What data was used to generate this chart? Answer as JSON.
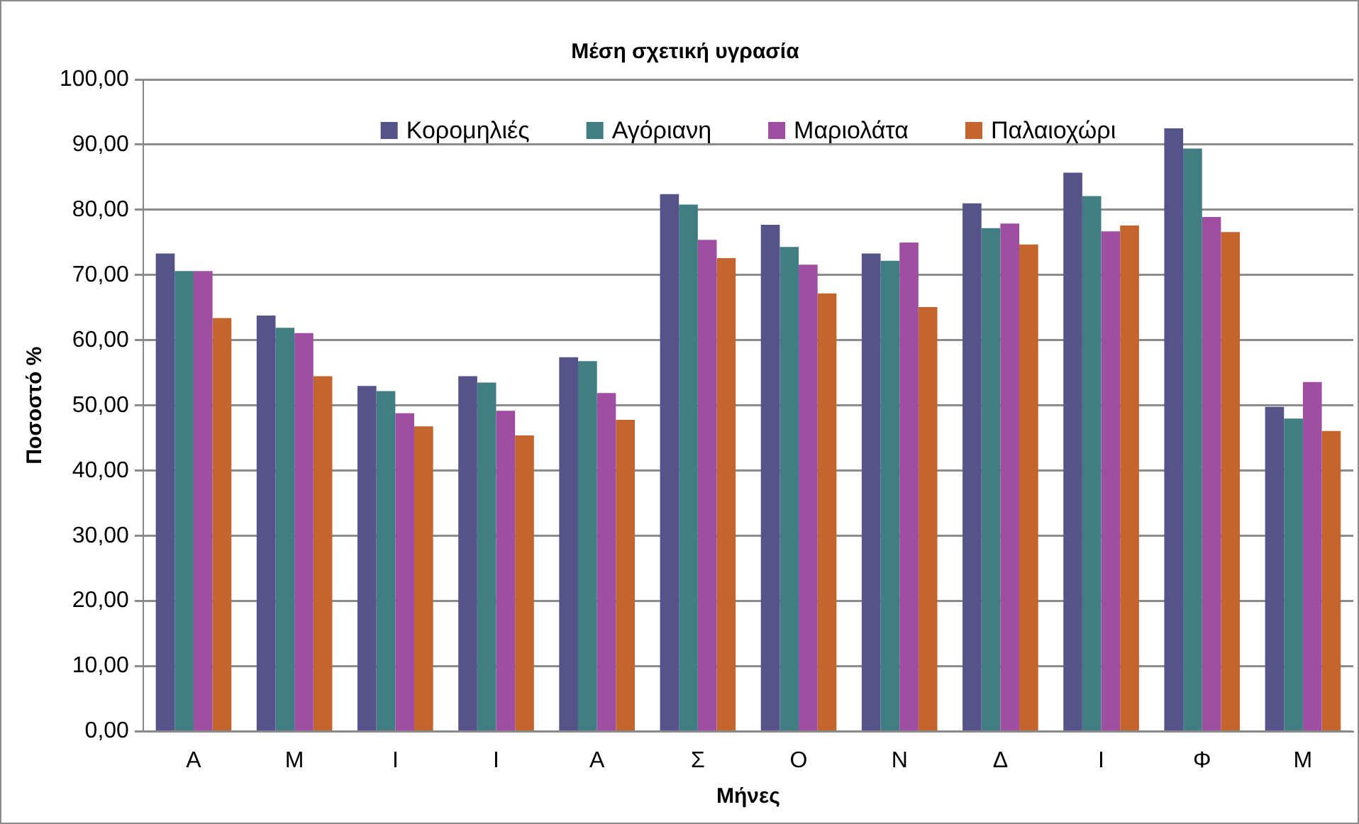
{
  "chart_data": {
    "type": "bar",
    "title": "Μέση σχετική υγρασία",
    "xlabel": "Μήνες",
    "ylabel": "Ποσοστό %",
    "categories": [
      "Α",
      "Μ",
      "Ι",
      "Ι",
      "Α",
      "Σ",
      "Ο",
      "Ν",
      "Δ",
      "Ι",
      "Φ",
      "Μ"
    ],
    "series": [
      {
        "name": "Κορομηλιές",
        "color": "#55538a",
        "values": [
          73.3,
          63.8,
          53.0,
          54.5,
          57.4,
          82.4,
          77.7,
          73.3,
          81.0,
          85.7,
          92.5,
          49.8
        ]
      },
      {
        "name": "Αγόριανη",
        "color": "#417e84",
        "values": [
          70.6,
          61.9,
          52.2,
          53.5,
          56.8,
          80.8,
          74.3,
          72.2,
          77.2,
          82.1,
          89.4,
          48.0
        ]
      },
      {
        "name": "Μαριολάτα",
        "color": "#a04ea2",
        "values": [
          70.6,
          61.1,
          48.8,
          49.2,
          51.9,
          75.4,
          71.6,
          75.0,
          77.9,
          76.7,
          78.9,
          53.6
        ]
      },
      {
        "name": "Παλαιοχώρι",
        "color": "#c3652d",
        "values": [
          63.4,
          54.5,
          46.8,
          45.4,
          47.8,
          72.6,
          67.2,
          65.1,
          74.7,
          77.6,
          76.6,
          46.1
        ]
      }
    ],
    "ylim": [
      0,
      100
    ],
    "yticks": [
      {
        "value": 0,
        "label": "0,00"
      },
      {
        "value": 10,
        "label": "10,00"
      },
      {
        "value": 20,
        "label": "20,00"
      },
      {
        "value": 30,
        "label": "30,00"
      },
      {
        "value": 40,
        "label": "40,00"
      },
      {
        "value": 50,
        "label": "50,00"
      },
      {
        "value": 60,
        "label": "60,00"
      },
      {
        "value": 70,
        "label": "70,00"
      },
      {
        "value": 80,
        "label": "80,00"
      },
      {
        "value": 90,
        "label": "90,00"
      },
      {
        "value": 100,
        "label": "100,00"
      }
    ],
    "grid": "y",
    "legend": "top"
  }
}
